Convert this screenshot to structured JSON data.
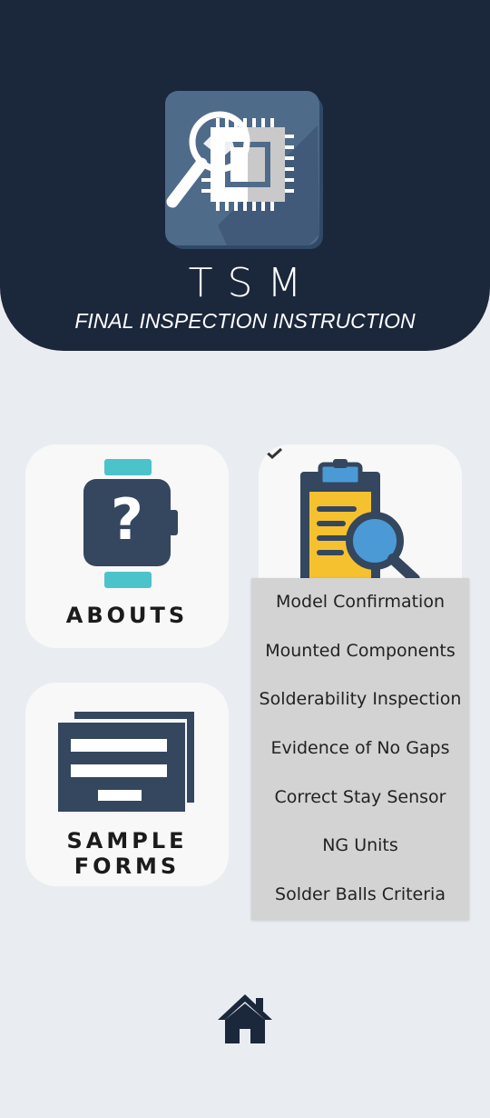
{
  "header": {
    "title": "TSM",
    "subtitle": "FINAL INSPECTION INSTRUCTION",
    "logo_icon": "chip-magnifier-icon"
  },
  "cards": {
    "abouts": {
      "label": "ABOUTS",
      "icon": "watch-question-icon"
    },
    "sample_forms": {
      "label_line1": "SAMPLE",
      "label_line2": "FORMS",
      "icon": "forms-stack-icon"
    },
    "inspection": {
      "icon": "clipboard-magnifier-icon",
      "toggle_icon": "chevron-down-icon"
    }
  },
  "dropdown": {
    "items": [
      "Model Confirmation",
      "Mounted Components",
      "Solderability Inspection",
      "Evidence of No Gaps",
      "Correct Stay Sensor",
      "NG Units",
      "Solder Balls Criteria"
    ]
  },
  "footer": {
    "home_icon": "home-icon"
  },
  "colors": {
    "header_bg": "#1b273b",
    "page_bg": "#e9edf1",
    "card_bg": "#f8f8f8",
    "icon_dark": "#34475e",
    "accent_teal": "#4cc3cb",
    "accent_yellow": "#f5c12e",
    "accent_blue": "#4b9ad6",
    "dropdown_bg": "#d3d3d3"
  }
}
